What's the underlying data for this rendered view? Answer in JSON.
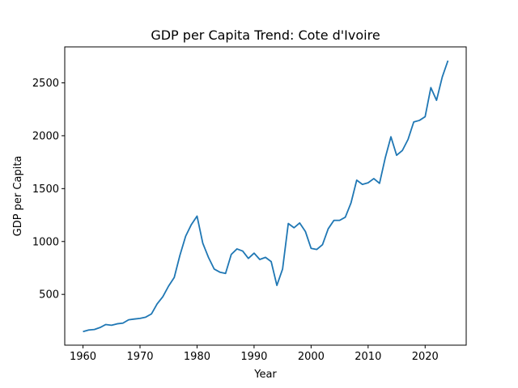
{
  "chart_data": {
    "type": "line",
    "title": "GDP per Capita Trend: Cote d'Ivoire",
    "xlabel": "Year",
    "ylabel": "GDP per Capita",
    "xlim": [
      1956.8,
      2027.2
    ],
    "ylim": [
      20,
      2840
    ],
    "x_ticks": [
      1960,
      1970,
      1980,
      1990,
      2000,
      2010,
      2020
    ],
    "y_ticks": [
      500,
      1000,
      1500,
      2000,
      2500
    ],
    "grid": false,
    "series": [
      {
        "color": "#1f77b4",
        "x": [
          1960,
          1961,
          1962,
          1963,
          1964,
          1965,
          1966,
          1967,
          1968,
          1969,
          1970,
          1971,
          1972,
          1973,
          1974,
          1975,
          1976,
          1977,
          1978,
          1979,
          1980,
          1981,
          1982,
          1983,
          1984,
          1985,
          1986,
          1987,
          1988,
          1989,
          1990,
          1991,
          1992,
          1993,
          1994,
          1995,
          1996,
          1997,
          1998,
          1999,
          2000,
          2001,
          2002,
          2003,
          2004,
          2005,
          2006,
          2007,
          2008,
          2009,
          2010,
          2011,
          2012,
          2013,
          2014,
          2015,
          2016,
          2017,
          2018,
          2019,
          2020,
          2021,
          2022,
          2023,
          2024
        ],
        "y": [
          148,
          163,
          168,
          187,
          215,
          208,
          222,
          228,
          260,
          267,
          273,
          285,
          315,
          410,
          478,
          578,
          660,
          870,
          1050,
          1160,
          1240,
          985,
          850,
          740,
          710,
          698,
          878,
          930,
          910,
          840,
          890,
          830,
          850,
          810,
          585,
          740,
          1170,
          1130,
          1175,
          1095,
          935,
          925,
          970,
          1120,
          1200,
          1200,
          1230,
          1365,
          1580,
          1540,
          1555,
          1595,
          1550,
          1790,
          1990,
          1815,
          1860,
          1965,
          2130,
          2145,
          2180,
          2455,
          2335,
          2555,
          2710
        ]
      }
    ]
  }
}
